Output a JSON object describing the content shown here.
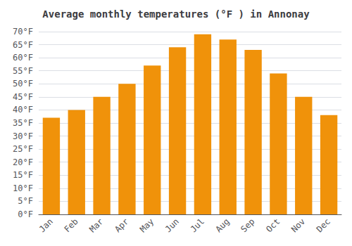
{
  "chart_data": {
    "type": "bar",
    "title": "Average monthly temperatures (°F ) in Annonay",
    "categories": [
      "Jan",
      "Feb",
      "Mar",
      "Apr",
      "May",
      "Jun",
      "Jul",
      "Aug",
      "Sep",
      "Oct",
      "Nov",
      "Dec"
    ],
    "values": [
      37,
      40,
      45,
      50,
      57,
      64,
      69,
      67,
      63,
      54,
      45,
      38
    ],
    "color": "#F0920A",
    "ylim": [
      0,
      70
    ],
    "yticks": [
      {
        "value": 0,
        "label": "0°F"
      },
      {
        "value": 5,
        "label": "5°F"
      },
      {
        "value": 10,
        "label": "10°F"
      },
      {
        "value": 15,
        "label": "15°F"
      },
      {
        "value": 20,
        "label": "20°F"
      },
      {
        "value": 25,
        "label": "25°F"
      },
      {
        "value": 30,
        "label": "30°F"
      },
      {
        "value": 35,
        "label": "35°F"
      },
      {
        "value": 40,
        "label": "40°F"
      },
      {
        "value": 45,
        "label": "45°F"
      },
      {
        "value": 50,
        "label": "50°F"
      },
      {
        "value": 55,
        "label": "55°F"
      },
      {
        "value": 60,
        "label": "60°F"
      },
      {
        "value": 65,
        "label": "65°F"
      },
      {
        "value": 70,
        "label": "70°F"
      }
    ],
    "grid": true
  }
}
